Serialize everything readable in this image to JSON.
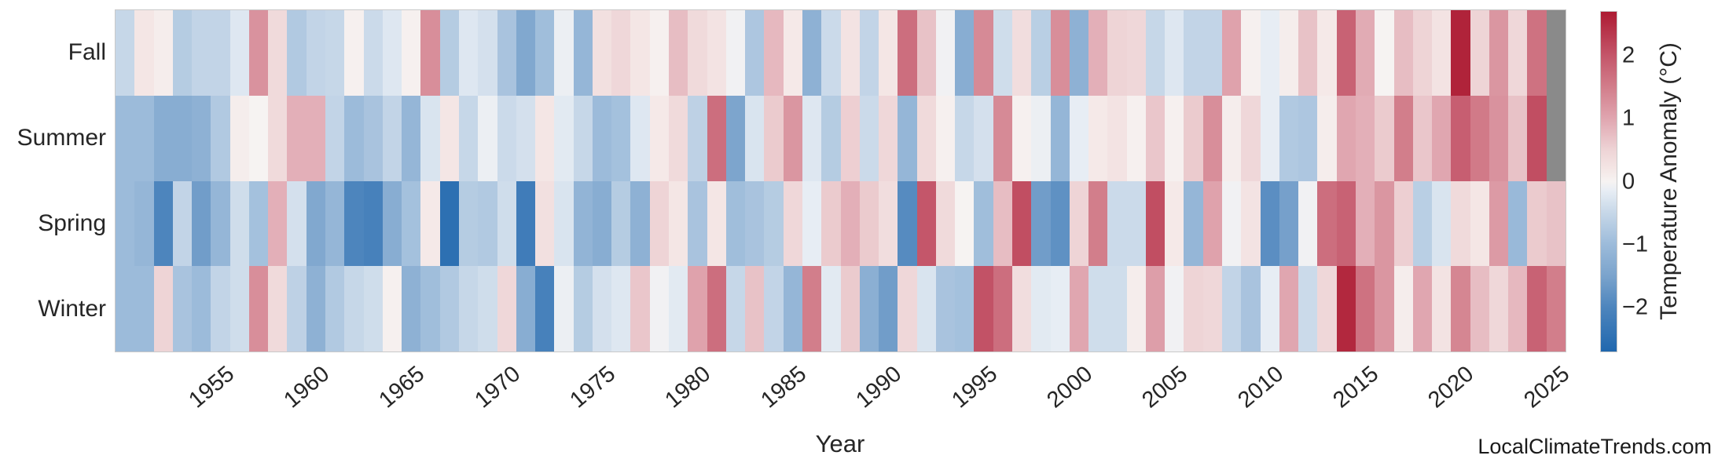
{
  "axes": {
    "xlabel": "Year",
    "row_labels": [
      "Fall",
      "Summer",
      "Spring",
      "Winter"
    ],
    "x_ticks": [
      1955,
      1960,
      1965,
      1970,
      1975,
      1980,
      1985,
      1990,
      1995,
      2000,
      2005,
      2010,
      2015,
      2020,
      2025
    ]
  },
  "colorbar": {
    "label": "Temperature Anomaly (°C)",
    "ticks": [
      2,
      1,
      0,
      -1,
      -2
    ],
    "vmin": -2.7,
    "vmax": 2.7
  },
  "colors": {
    "background": "#ffffff",
    "text": "#262626",
    "border": "#c9c9c9",
    "missing": "#8a8a8a",
    "colormap_stops": [
      [
        -2.7,
        "#2067ae"
      ],
      [
        -2.0,
        "#4d85bd"
      ],
      [
        -1.5,
        "#7aa3cc"
      ],
      [
        -1.0,
        "#9cbbda"
      ],
      [
        -0.5,
        "#c6d7e8"
      ],
      [
        -0.15,
        "#e7edf4"
      ],
      [
        0.0,
        "#f6f3f2"
      ],
      [
        0.2,
        "#f4e6e5"
      ],
      [
        0.5,
        "#eed4d6"
      ],
      [
        1.0,
        "#e0a6b0"
      ],
      [
        1.5,
        "#d27e8b"
      ],
      [
        2.0,
        "#c4566a"
      ],
      [
        2.7,
        "#ad1b32"
      ]
    ]
  },
  "watermark": "LocalClimateTrends.com",
  "chart_data": {
    "type": "heatmap",
    "title": "",
    "xlabel": "Year",
    "ylabel": "",
    "colorbar_label": "Temperature Anomaly (°C)",
    "x": [
      1950,
      1951,
      1952,
      1953,
      1954,
      1955,
      1956,
      1957,
      1958,
      1959,
      1960,
      1961,
      1962,
      1963,
      1964,
      1965,
      1966,
      1967,
      1968,
      1969,
      1970,
      1971,
      1972,
      1973,
      1974,
      1975,
      1976,
      1977,
      1978,
      1979,
      1980,
      1981,
      1982,
      1983,
      1984,
      1985,
      1986,
      1987,
      1988,
      1989,
      1990,
      1991,
      1992,
      1993,
      1994,
      1995,
      1996,
      1997,
      1998,
      1999,
      2000,
      2001,
      2002,
      2003,
      2004,
      2005,
      2006,
      2007,
      2008,
      2009,
      2010,
      2011,
      2012,
      2013,
      2014,
      2015,
      2016,
      2017,
      2018,
      2019,
      2020,
      2021,
      2022,
      2023,
      2024,
      2025
    ],
    "rows": [
      "Fall",
      "Summer",
      "Spring",
      "Winter"
    ],
    "series": [
      {
        "name": "Fall",
        "values": [
          -0.5,
          0.2,
          0.1,
          -0.7,
          -0.55,
          -0.55,
          -0.25,
          1.25,
          0.4,
          -0.75,
          -0.55,
          -0.5,
          0.05,
          -0.45,
          -0.25,
          0.05,
          1.3,
          -0.7,
          -0.25,
          -0.35,
          -0.85,
          -1.4,
          -0.95,
          -0.1,
          -1.1,
          0.3,
          0.45,
          0.2,
          0.05,
          0.75,
          0.4,
          0.25,
          -0.05,
          -0.8,
          0.8,
          0.15,
          -1.2,
          -0.45,
          0.25,
          -0.55,
          0.2,
          1.7,
          0.7,
          -0.05,
          -1.3,
          1.35,
          -0.4,
          0.35,
          -0.65,
          1.3,
          -1.2,
          0.9,
          0.5,
          0.45,
          -0.5,
          -0.25,
          -0.55,
          -0.55,
          1.05,
          0.05,
          -0.15,
          0.1,
          0.7,
          0.15,
          1.85,
          0.95,
          0.0,
          0.75,
          0.5,
          0.25,
          2.6,
          0.5,
          1.2,
          0.45,
          1.65,
          null
        ]
      },
      {
        "name": "Summer",
        "values": [
          -1.0,
          -1.0,
          -1.3,
          -1.3,
          -1.2,
          -0.75,
          0.1,
          0.0,
          0.4,
          0.9,
          0.9,
          -0.55,
          -1.0,
          -0.85,
          -0.55,
          -1.1,
          -0.3,
          0.2,
          -0.5,
          -0.1,
          -0.45,
          -0.35,
          0.2,
          -0.2,
          -0.5,
          -1.0,
          -0.9,
          -0.25,
          0.15,
          0.4,
          -0.6,
          1.7,
          -1.45,
          -0.3,
          0.6,
          1.2,
          -0.25,
          -0.7,
          0.55,
          -0.45,
          0.45,
          -1.1,
          0.4,
          0.05,
          -0.5,
          -0.35,
          1.35,
          0.05,
          -0.1,
          -1.1,
          -0.15,
          0.15,
          0.25,
          0.05,
          0.65,
          0.05,
          0.6,
          1.3,
          0.1,
          0.45,
          -0.15,
          -0.75,
          -0.8,
          0.1,
          1.0,
          0.9,
          0.6,
          1.5,
          0.65,
          1.0,
          1.9,
          1.55,
          1.25,
          0.7,
          2.1,
          null
        ]
      },
      {
        "name": "Spring",
        "values": [
          -1.0,
          -1.1,
          -2.0,
          -0.55,
          -1.6,
          -1.1,
          -0.4,
          -0.9,
          0.9,
          -0.35,
          -1.4,
          -1.1,
          -2.0,
          -2.1,
          -1.3,
          -0.9,
          0.15,
          -2.5,
          -0.7,
          -0.75,
          -0.4,
          -2.2,
          0.3,
          -0.3,
          -1.15,
          -1.3,
          -0.7,
          -1.2,
          0.5,
          0.2,
          -0.85,
          0.2,
          -0.95,
          -0.85,
          -0.7,
          0.45,
          -0.15,
          0.6,
          0.9,
          0.6,
          0.35,
          -1.9,
          2.0,
          0.4,
          0.0,
          -0.95,
          0.75,
          2.1,
          -1.6,
          -1.8,
          0.5,
          1.5,
          -0.45,
          -0.45,
          2.1,
          0.15,
          -1.1,
          1.05,
          -0.05,
          0.25,
          -1.85,
          -1.55,
          -0.05,
          1.7,
          1.85,
          0.9,
          1.2,
          0.55,
          -0.65,
          -0.3,
          0.4,
          0.2,
          1.15,
          -1.05,
          0.6,
          0.7
        ]
      },
      {
        "name": "Winter",
        "values": [
          -1.0,
          -1.0,
          0.5,
          -0.85,
          -1.0,
          -0.55,
          -0.4,
          1.3,
          0.4,
          -0.6,
          -1.2,
          -0.75,
          -0.5,
          -0.4,
          0.05,
          -1.2,
          -0.95,
          -0.75,
          -0.5,
          -0.4,
          0.45,
          -1.3,
          -2.1,
          -0.1,
          -0.7,
          -0.35,
          -0.25,
          0.65,
          -0.05,
          -0.2,
          1.05,
          1.7,
          -0.5,
          0.7,
          -0.55,
          -1.1,
          1.5,
          -0.2,
          0.6,
          -1.25,
          -1.6,
          0.45,
          -0.3,
          -0.85,
          -0.9,
          2.05,
          1.7,
          0.35,
          -0.2,
          -0.15,
          1.0,
          -0.4,
          -0.4,
          0.1,
          1.1,
          -0.05,
          0.5,
          0.45,
          -0.55,
          -0.85,
          -0.15,
          1.0,
          -0.45,
          0.45,
          2.55,
          1.65,
          1.2,
          0.1,
          1.0,
          0.25,
          1.4,
          0.75,
          0.45,
          0.8,
          1.85,
          1.5
        ]
      }
    ],
    "x_range": [
      1950,
      2025
    ],
    "grid": false,
    "legend": "colorbar-right",
    "missing_cells": [
      [
        "Fall",
        2025
      ],
      [
        "Summer",
        2025
      ]
    ]
  }
}
